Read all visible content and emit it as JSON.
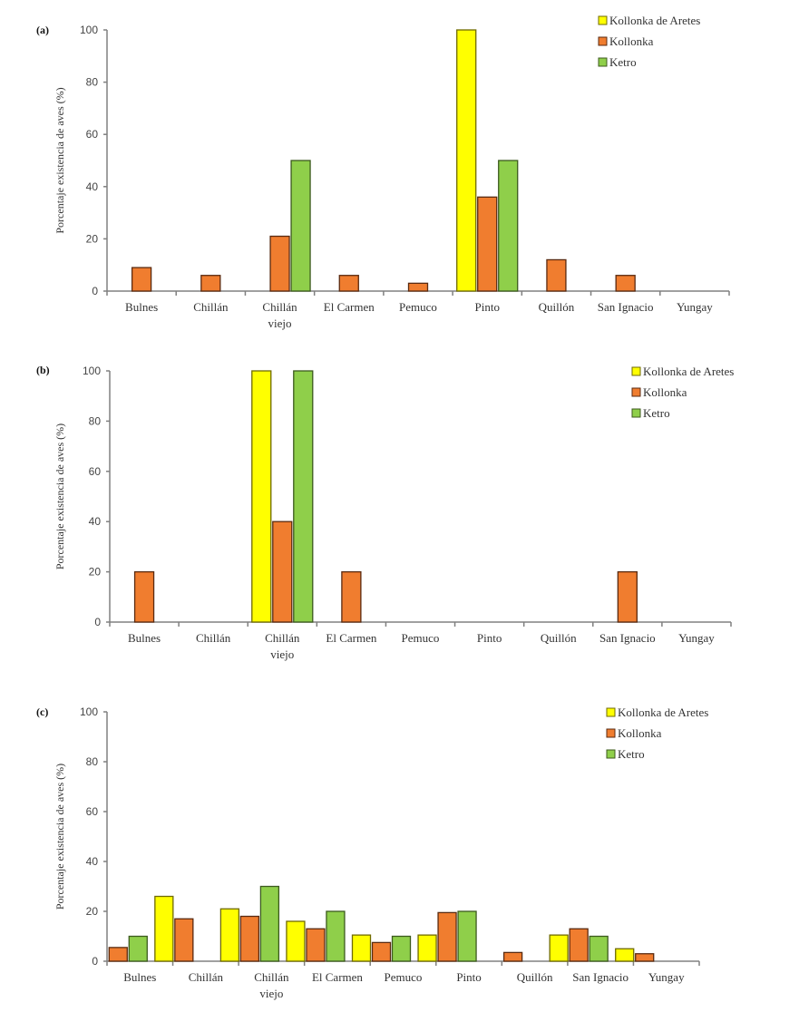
{
  "figure": {
    "colors": {
      "Kollonka de Aretes": "#FFFF00",
      "Kollonka": "#F07D2F",
      "Ketro": "#8FCF4A"
    },
    "stroke_colors": {
      "Kollonka de Aretes": "#6F6A00",
      "Kollonka": "#5A2A10",
      "Ketro": "#3C5A1E"
    }
  },
  "chart_data": [
    {
      "type": "bar",
      "panel": "(a)",
      "title": "",
      "xlabel": "",
      "ylabel": "Porcentaje existencia de aves (%)",
      "ylim": [
        0,
        100
      ],
      "yticks": [
        "0",
        "20",
        "40",
        "60",
        "80",
        "100"
      ],
      "grid": false,
      "legend": "top-right",
      "categories": [
        "Bulnes",
        "Chillán",
        "Chillán viejo",
        "El Carmen",
        "Pemuco",
        "Pinto",
        "Quillón",
        "San Ignacio",
        "Yungay"
      ],
      "category_lines": [
        [
          "Bulnes"
        ],
        [
          "Chillán"
        ],
        [
          "Chillán",
          "viejo"
        ],
        [
          "El Carmen"
        ],
        [
          "Pemuco"
        ],
        [
          "Pinto"
        ],
        [
          "Quillón"
        ],
        [
          "San Ignacio"
        ],
        [
          "Yungay"
        ]
      ],
      "series": [
        {
          "name": "Kollonka de Aretes",
          "values": [
            0,
            0,
            0,
            0,
            0,
            100,
            0,
            0,
            0
          ]
        },
        {
          "name": "Kollonka",
          "values": [
            9,
            6,
            21,
            6,
            3,
            36,
            12,
            6,
            0
          ]
        },
        {
          "name": "Ketro",
          "values": [
            0,
            0,
            50,
            0,
            0,
            50,
            0,
            0,
            0
          ]
        }
      ]
    },
    {
      "type": "bar",
      "panel": "(b)",
      "title": "",
      "xlabel": "",
      "ylabel": "Porcentaje existencia de aves (%)",
      "ylim": [
        0,
        100
      ],
      "yticks": [
        "0",
        "20",
        "40",
        "60",
        "80",
        "100"
      ],
      "grid": false,
      "legend": "top-right",
      "categories": [
        "Bulnes",
        "Chillán",
        "Chillán viejo",
        "El Carmen",
        "Pemuco",
        "Pinto",
        "Quillón",
        "San Ignacio",
        "Yungay"
      ],
      "category_lines": [
        [
          "Bulnes"
        ],
        [
          "Chillán"
        ],
        [
          "Chillán",
          "viejo"
        ],
        [
          "El Carmen"
        ],
        [
          "Pemuco"
        ],
        [
          "Pinto"
        ],
        [
          "Quillón"
        ],
        [
          "San Ignacio"
        ],
        [
          "Yungay"
        ]
      ],
      "series": [
        {
          "name": "Kollonka de Aretes",
          "values": [
            0,
            0,
            100,
            0,
            0,
            0,
            0,
            0,
            0
          ]
        },
        {
          "name": "Kollonka",
          "values": [
            20,
            0,
            40,
            20,
            0,
            0,
            0,
            20,
            0
          ]
        },
        {
          "name": "Ketro",
          "values": [
            0,
            0,
            100,
            0,
            0,
            0,
            0,
            0,
            0
          ]
        }
      ]
    },
    {
      "type": "bar",
      "panel": "(c)",
      "title": "",
      "xlabel": "",
      "ylabel": "Porcentaje existencia de aves (%)",
      "ylim": [
        0,
        100
      ],
      "yticks": [
        "0",
        "20",
        "40",
        "60",
        "80",
        "100"
      ],
      "grid": false,
      "legend": "top-right",
      "categories": [
        "Bulnes",
        "Chillán",
        "Chillán viejo",
        "El Carmen",
        "Pemuco",
        "Pinto",
        "Quillón",
        "San Ignacio",
        "Yungay"
      ],
      "category_lines": [
        [
          "Bulnes"
        ],
        [
          "Chillán"
        ],
        [
          "Chillán",
          "viejo"
        ],
        [
          "El Carmen"
        ],
        [
          "Pemuco"
        ],
        [
          "Pinto"
        ],
        [
          "Quillón"
        ],
        [
          "San Ignacio"
        ],
        [
          "Yungay"
        ]
      ],
      "series": [
        {
          "name": "Kollonka de Aretes",
          "values": [
            0,
            26,
            21,
            16,
            10.5,
            10.5,
            0,
            10.5,
            5
          ]
        },
        {
          "name": "Kollonka",
          "values": [
            5.5,
            17,
            18,
            13,
            7.5,
            19.5,
            3.5,
            13,
            3
          ]
        },
        {
          "name": "Ketro",
          "values": [
            10,
            0,
            30,
            20,
            10,
            20,
            0,
            10,
            0
          ]
        }
      ]
    }
  ]
}
